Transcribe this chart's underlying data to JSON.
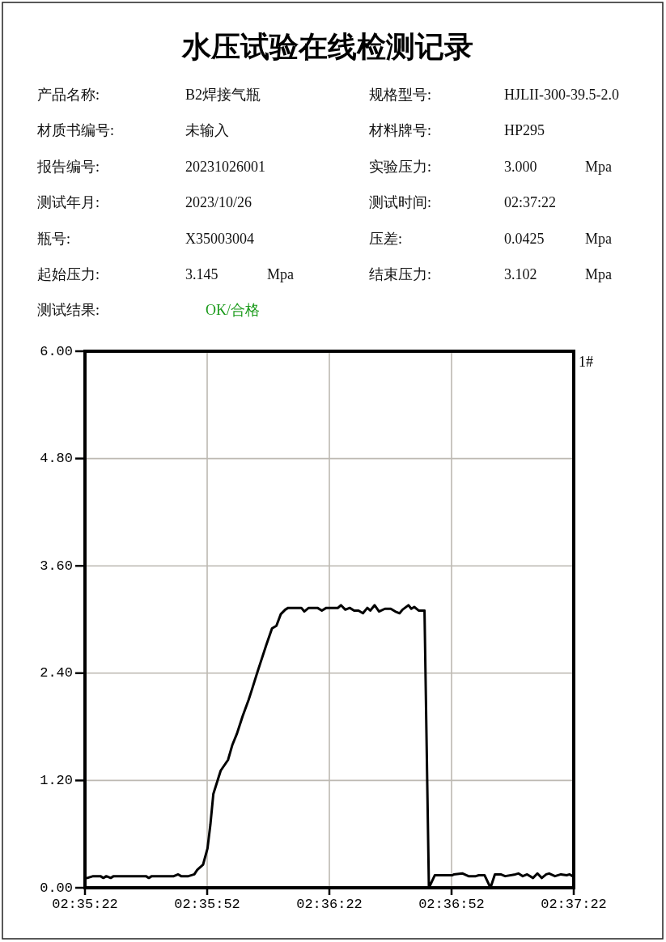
{
  "chart_data": {
    "type": "line",
    "title": "水压试验在线检测记录",
    "annotations": [
      "产品名称:",
      "B2焊接气瓶",
      "规格型号:",
      "HJLII-300-39.5-2.0",
      "材质书编号:",
      "未输入",
      "材料牌号:",
      "HP295",
      "报告编号:",
      "20231026001",
      "实验压力:",
      "3.000",
      "Mpa",
      "测试年月:",
      "2023/10/26",
      "测试时间:",
      "02:37:22",
      "瓶号:",
      "X35003004",
      "压差:",
      "0.0425",
      "Mpa",
      "起始压力:",
      "3.145",
      "Mpa",
      "结束压力:",
      "3.102",
      "Mpa",
      "测试结果:",
      "OK/合格"
    ],
    "x": [
      2.5896,
      2.59,
      2.5905,
      2.5907,
      2.5909,
      2.5912,
      2.5914,
      2.5936,
      2.5938,
      2.594,
      2.5955,
      2.5958,
      2.596,
      2.5965,
      2.5969,
      2.5971,
      2.5975,
      2.5978,
      2.598,
      2.5982,
      2.5987,
      2.5992,
      2.5995,
      2.5998,
      2.6002,
      2.6006,
      2.6008,
      2.6012,
      2.6014,
      2.6018,
      2.6022,
      2.6025,
      2.6028,
      2.6031,
      2.6033,
      2.6042,
      2.6044,
      2.6047,
      2.6053,
      2.6056,
      2.6059,
      2.6067,
      2.6069,
      2.6072,
      2.6075,
      2.6078,
      2.6081,
      2.6084,
      2.6087,
      2.6089,
      2.6092,
      2.6095,
      2.6099,
      2.6103,
      2.6106,
      2.6109,
      2.6111,
      2.6115,
      2.6117,
      2.6119,
      2.6122,
      2.6126,
      2.6129,
      2.6133,
      2.6145,
      2.6146,
      2.6152,
      2.6156,
      2.6161,
      2.6163,
      2.6167,
      2.6171,
      2.6174,
      2.6178,
      2.6181,
      2.6188,
      2.619,
      2.6193,
      2.6196,
      2.62,
      2.6203,
      2.6206,
      2.6209,
      2.6211,
      2.6215,
      2.6219,
      2.6223,
      2.6225,
      2.6227
    ],
    "series": [
      {
        "name": "1#",
        "color": "#000000",
        "values": [
          0.11,
          0.13,
          0.13,
          0.11,
          0.13,
          0.11,
          0.13,
          0.13,
          0.11,
          0.13,
          0.13,
          0.15,
          0.13,
          0.13,
          0.15,
          0.2,
          0.26,
          0.44,
          0.71,
          1.05,
          1.31,
          1.43,
          1.6,
          1.72,
          1.92,
          2.1,
          2.2,
          2.41,
          2.51,
          2.71,
          2.9,
          2.93,
          3.06,
          3.11,
          3.13,
          3.13,
          3.09,
          3.13,
          3.13,
          3.1,
          3.13,
          3.13,
          3.16,
          3.11,
          3.13,
          3.1,
          3.1,
          3.07,
          3.13,
          3.1,
          3.16,
          3.09,
          3.12,
          3.12,
          3.09,
          3.07,
          3.11,
          3.16,
          3.12,
          3.14,
          3.1,
          3.1,
          0.0,
          0.14,
          0.14,
          0.15,
          0.16,
          0.13,
          0.13,
          0.14,
          0.14,
          0.0,
          0.15,
          0.15,
          0.13,
          0.15,
          0.16,
          0.13,
          0.15,
          0.11,
          0.16,
          0.11,
          0.15,
          0.16,
          0.13,
          0.15,
          0.14,
          0.15,
          0.13
        ]
      }
    ],
    "xlim": [
      2.589444,
      2.622778
    ],
    "xticks": [
      {
        "value": 2.589444,
        "label": "02:35:22"
      },
      {
        "value": 2.597778,
        "label": "02:35:52"
      },
      {
        "value": 2.606111,
        "label": "02:36:22"
      },
      {
        "value": 2.614444,
        "label": "02:36:52"
      },
      {
        "value": 2.622778,
        "label": "02:37:22"
      }
    ],
    "ylim": [
      0,
      6
    ],
    "yticks": [
      {
        "value": 0,
        "label": "0.00"
      },
      {
        "value": 1.2,
        "label": "1.20"
      },
      {
        "value": 2.4,
        "label": "2.40"
      },
      {
        "value": 3.6,
        "label": "3.60"
      },
      {
        "value": 4.8,
        "label": "4.80"
      },
      {
        "value": 6,
        "label": "6.00"
      }
    ],
    "grid": true,
    "legend": "top right"
  }
}
